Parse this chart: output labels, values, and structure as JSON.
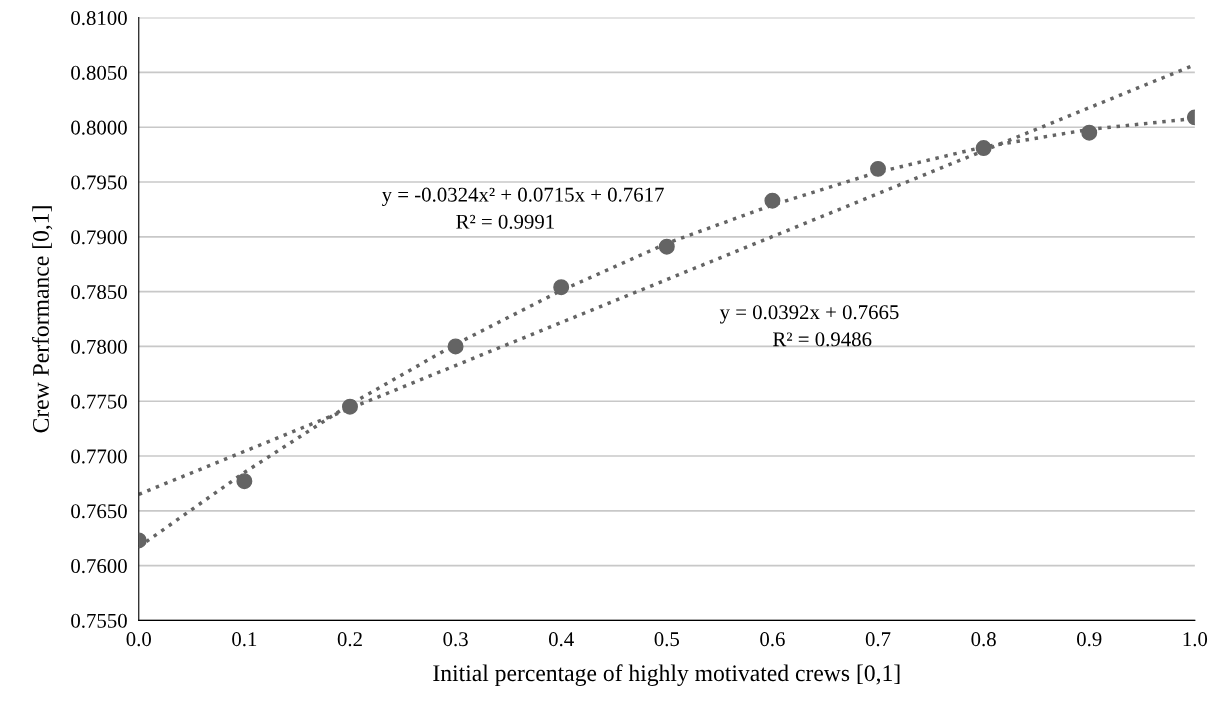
{
  "chart_data": {
    "type": "scatter",
    "xlabel": "Initial percentage of highly motivated crews [0,1]",
    "ylabel": "Crew Performance [0,1]",
    "x": [
      0,
      0.1,
      0.2,
      0.3,
      0.4,
      0.5,
      0.6,
      0.7,
      0.8,
      0.9,
      1.0
    ],
    "series": [
      {
        "color": "#646464",
        "marker": "circle",
        "values": [
          0.7623,
          0.7677,
          0.7745,
          0.78,
          0.7854,
          0.7891,
          0.7933,
          0.7962,
          0.7981,
          0.7995,
          0.8009
        ]
      },
      {
        "type": "line",
        "color": "#646464",
        "line_style": "dotted",
        "marker": "none",
        "x": [
          0,
          0.1,
          0.2,
          0.3,
          0.4,
          0.5,
          0.6,
          0.7,
          0.8,
          0.9,
          1.0
        ],
        "values": [
          0.7617,
          0.7685,
          0.7747,
          0.7802,
          0.7851,
          0.7894,
          0.7929,
          0.7959,
          0.7982,
          0.7998,
          0.8008
        ]
      },
      {
        "type": "line",
        "color": "#646464",
        "line_style": "dotted",
        "marker": "none",
        "x": [
          0,
          1.0
        ],
        "values": [
          0.7665,
          0.8057
        ]
      }
    ],
    "xlim": [
      0,
      1.0
    ],
    "ylim": [
      0.755,
      0.81
    ],
    "xticks": [
      {
        "value": 0,
        "label": "0.0"
      },
      {
        "value": 0.1,
        "label": "0.1"
      },
      {
        "value": 0.2,
        "label": "0.2"
      },
      {
        "value": 0.3,
        "label": "0.3"
      },
      {
        "value": 0.4,
        "label": "0.4"
      },
      {
        "value": 0.5,
        "label": "0.5"
      },
      {
        "value": 0.6,
        "label": "0.6"
      },
      {
        "value": 0.7,
        "label": "0.7"
      },
      {
        "value": 0.8,
        "label": "0.8"
      },
      {
        "value": 0.9,
        "label": "0.9"
      },
      {
        "value": 1.0,
        "label": "1.0"
      }
    ],
    "yticks": [
      {
        "value": 0.755,
        "label": "0.7550"
      },
      {
        "value": 0.76,
        "label": "0.7600"
      },
      {
        "value": 0.765,
        "label": "0.7650"
      },
      {
        "value": 0.77,
        "label": "0.7700"
      },
      {
        "value": 0.775,
        "label": "0.7750"
      },
      {
        "value": 0.78,
        "label": "0.7800"
      },
      {
        "value": 0.785,
        "label": "0.7850"
      },
      {
        "value": 0.79,
        "label": "0.7900"
      },
      {
        "value": 0.795,
        "label": "0.7950"
      },
      {
        "value": 0.8,
        "label": "0.8000"
      },
      {
        "value": 0.805,
        "label": "0.8050"
      },
      {
        "value": 0.81,
        "label": "0.8100"
      }
    ],
    "grid": "y",
    "legend": false,
    "annotations": [
      "y = -0.0324x² + 0.0715x + 0.7617",
      "R² = 0.9991",
      "y = 0.0392x + 0.7665",
      "R² = 0.9486"
    ]
  }
}
